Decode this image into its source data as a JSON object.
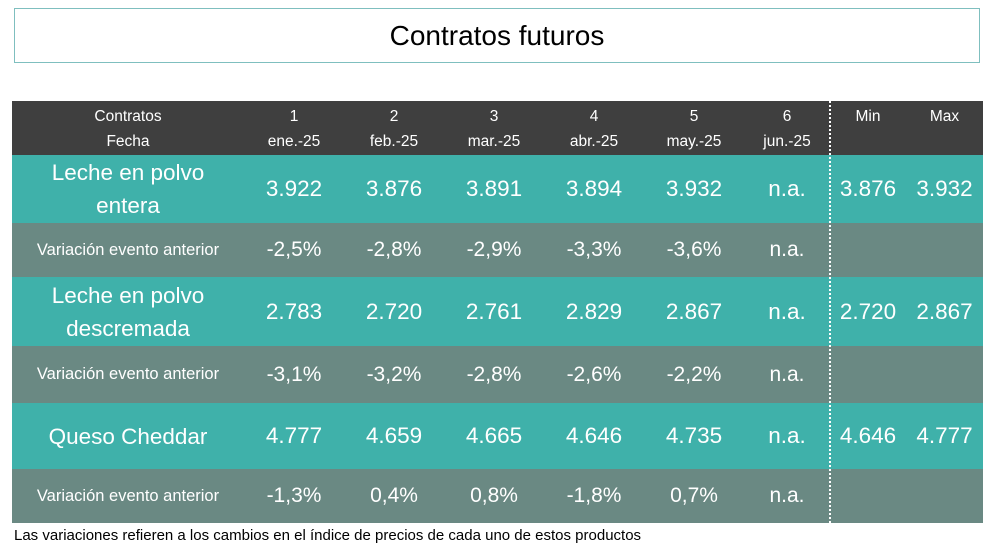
{
  "title": "Contratos futuros",
  "header": {
    "row_label_top": "Contratos",
    "row_label_bottom": "Fecha",
    "columns": [
      {
        "num": "1",
        "date": "ene.-25"
      },
      {
        "num": "2",
        "date": "feb.-25"
      },
      {
        "num": "3",
        "date": "mar.-25"
      },
      {
        "num": "4",
        "date": "abr.-25"
      },
      {
        "num": "5",
        "date": "may.-25"
      },
      {
        "num": "6",
        "date": "jun.-25"
      }
    ],
    "min_label": "Min",
    "max_label": "Max"
  },
  "rows": [
    {
      "kind": "product",
      "label_line1": "Leche en polvo",
      "label_line2": "entera",
      "values": [
        "3.922",
        "3.876",
        "3.891",
        "3.894",
        "3.932",
        "n.a."
      ],
      "min": "3.876",
      "max": "3.932"
    },
    {
      "kind": "variation",
      "label_line1": "Variación evento anterior",
      "label_line2": "",
      "values": [
        "-2,5%",
        "-2,8%",
        "-2,9%",
        "-3,3%",
        "-3,6%",
        "n.a."
      ],
      "min": "",
      "max": ""
    },
    {
      "kind": "product",
      "label_line1": "Leche en polvo",
      "label_line2": "descremada",
      "values": [
        "2.783",
        "2.720",
        "2.761",
        "2.829",
        "2.867",
        "n.a."
      ],
      "min": "2.720",
      "max": "2.867"
    },
    {
      "kind": "variation",
      "label_line1": "Variación evento anterior",
      "label_line2": "",
      "values": [
        "-3,1%",
        "-3,2%",
        "-2,8%",
        "-2,6%",
        "-2,2%",
        "n.a."
      ],
      "min": "",
      "max": ""
    },
    {
      "kind": "product",
      "label_line1": "Queso Cheddar",
      "label_line2": "",
      "values": [
        "4.777",
        "4.659",
        "4.665",
        "4.646",
        "4.735",
        "n.a."
      ],
      "min": "4.646",
      "max": "4.777"
    },
    {
      "kind": "variation",
      "label_line1": "Variación evento anterior",
      "label_line2": "",
      "values": [
        "-1,3%",
        "0,4%",
        "0,8%",
        "-1,8%",
        "0,7%",
        "n.a."
      ],
      "min": "",
      "max": ""
    }
  ],
  "footnote": "Las variaciones refieren a los cambios en el índice de precios de cada uno de estos productos",
  "colors": {
    "header": "#3f3f3f",
    "product_row": "#3fb1aa",
    "variation_row": "#6a8983"
  }
}
